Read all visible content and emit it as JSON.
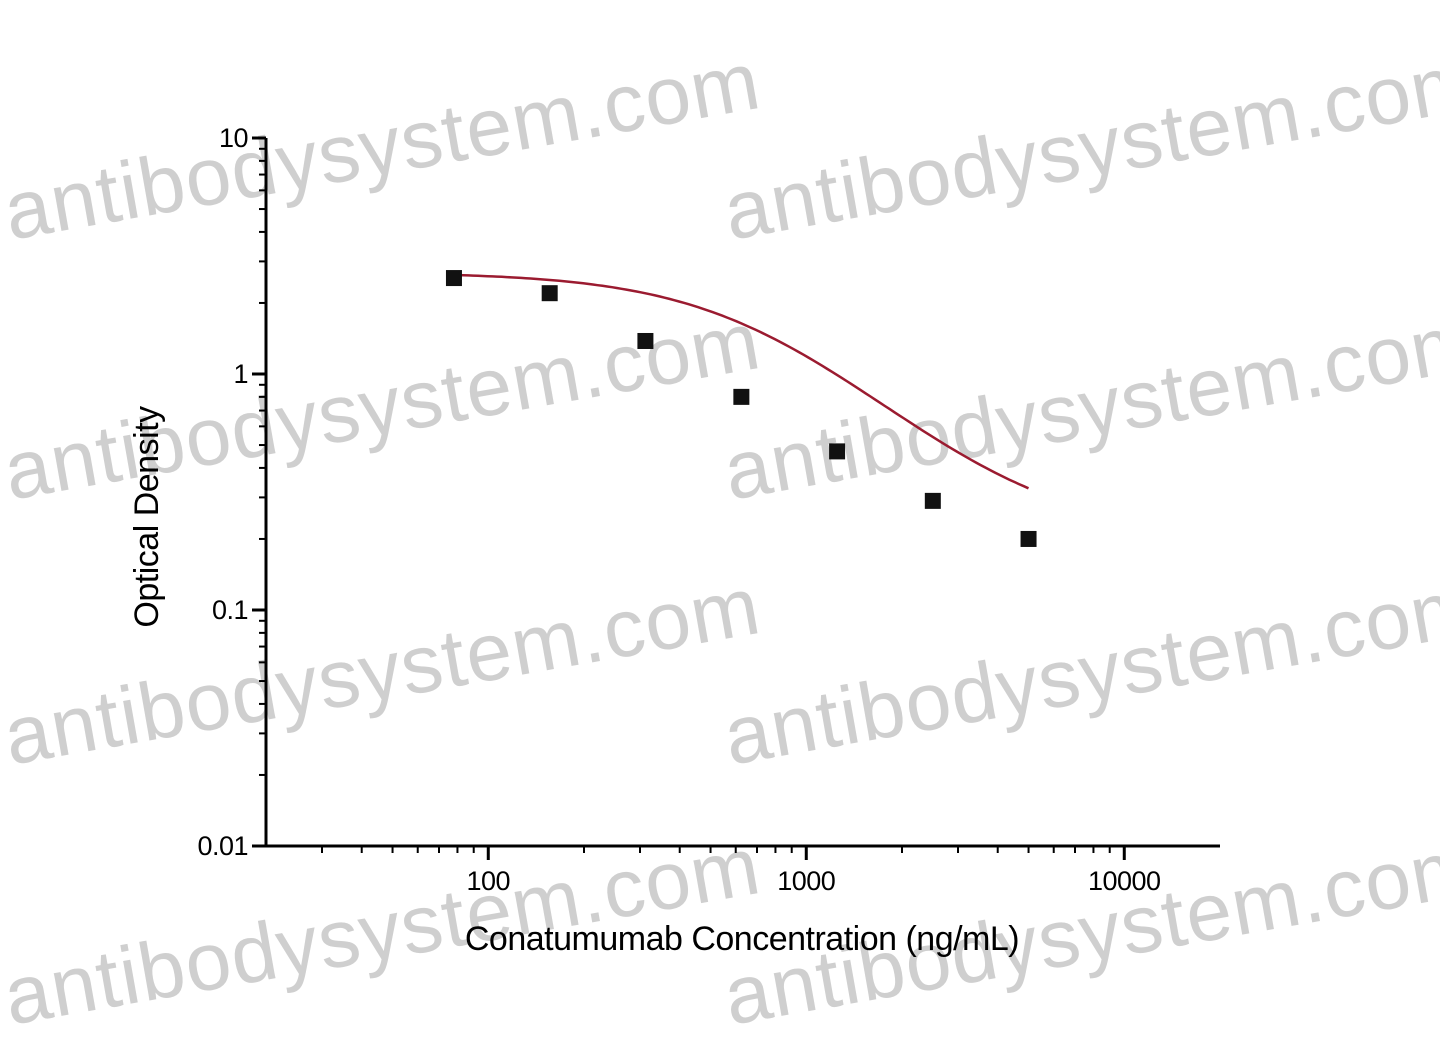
{
  "chart_data": {
    "type": "scatter",
    "xlabel": "Conatumumab  Concentration (ng/mL)",
    "ylabel": "Optical Density",
    "xscale": "log",
    "yscale": "log",
    "xlim": [
      20,
      20000
    ],
    "ylim": [
      0.01,
      10
    ],
    "x_ticks": [
      {
        "value": 100,
        "label": "100"
      },
      {
        "value": 1000,
        "label": "1000"
      },
      {
        "value": 10000,
        "label": "10000"
      }
    ],
    "y_ticks": [
      {
        "value": 10,
        "label": "10"
      },
      {
        "value": 1,
        "label": "1"
      },
      {
        "value": 0.1,
        "label": "0.1"
      },
      {
        "value": 0.01,
        "label": "0.01"
      }
    ],
    "grid": false,
    "legend": "none",
    "series": [
      {
        "marker": "square",
        "color": "#111111",
        "x": [
          78,
          156,
          312,
          625,
          1250,
          2500,
          5000
        ],
        "y": [
          2.55,
          2.2,
          1.38,
          0.8,
          0.47,
          0.29,
          0.2
        ]
      }
    ],
    "fit_curve": {
      "color": "#9b1b30",
      "model": "4PL",
      "top": 2.7,
      "bottom": 0.2,
      "ec50": 760,
      "hill": 1.55,
      "x_range": [
        78,
        5000
      ]
    },
    "watermark": "antibodysystem.com"
  }
}
